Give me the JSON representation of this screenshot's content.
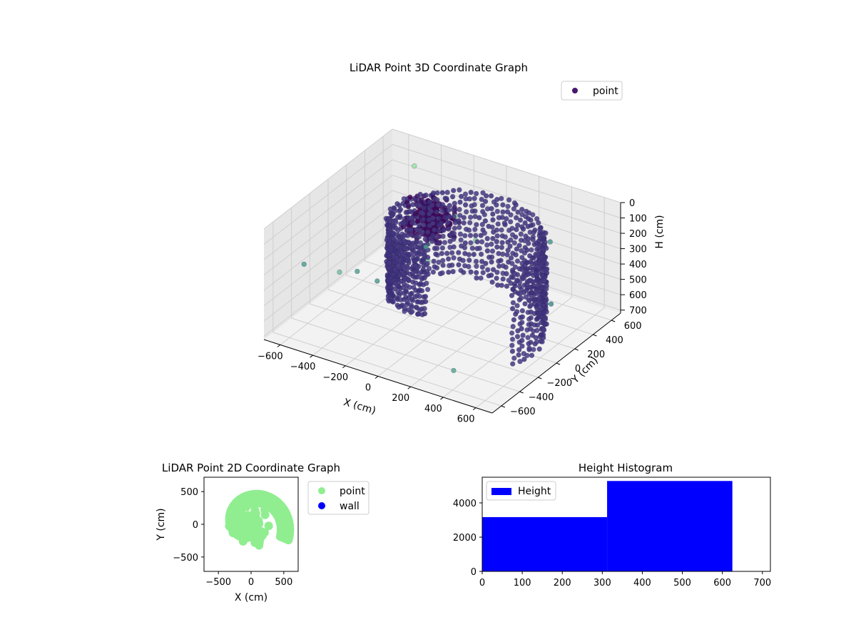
{
  "chart_data": [
    {
      "type": "scatter",
      "projection": "3d",
      "title": "LiDAR Point 3D Coordinate Graph",
      "xlabel": "X (cm)",
      "ylabel": "Y (cm)",
      "zlabel": "H (cm)",
      "xlim": [
        -700,
        700
      ],
      "ylim": [
        -700,
        700
      ],
      "zlim": [
        0,
        720
      ],
      "z_inverted": true,
      "xticks": [
        -600,
        -400,
        -200,
        0,
        200,
        400,
        600
      ],
      "yticks": [
        -600,
        -400,
        -200,
        0,
        200,
        400,
        600
      ],
      "zticks": [
        0,
        100,
        200,
        300,
        400,
        500,
        600,
        700
      ],
      "colormap": "viridis",
      "legend": {
        "placement": "top-right",
        "entries": [
          {
            "label": "point",
            "color": "#46186e"
          }
        ]
      },
      "series": [
        {
          "name": "point",
          "description_shape": "spiral wall",
          "wall_radius_cm": [
            620,
            180
          ],
          "points_per_turn": 78
        }
      ],
      "grid": true
    },
    {
      "type": "scatter",
      "title": "LiDAR Point 2D Coordinate Graph",
      "xlabel": "X (cm)",
      "ylabel": "Y (cm)",
      "xlim": [
        -720,
        720
      ],
      "ylim": [
        -720,
        720
      ],
      "xticks": [
        -500,
        0,
        500
      ],
      "yticks": [
        -500,
        0,
        500
      ],
      "legend": {
        "placement": "outside-right",
        "entries": [
          {
            "label": "point",
            "color": "#90ee90"
          },
          {
            "label": "wall",
            "color": "#0000ff"
          }
        ]
      }
    },
    {
      "type": "bar",
      "subtype": "histogram",
      "title": "Height Histogram",
      "xlim": [
        0,
        720
      ],
      "ylim": [
        0,
        5500
      ],
      "xticks": [
        0,
        100,
        200,
        300,
        400,
        500,
        600,
        700
      ],
      "yticks": [
        0,
        2000,
        4000
      ],
      "bins": [
        {
          "start": 0,
          "end": 312,
          "count": 3170
        },
        {
          "start": 312,
          "end": 625,
          "count": 5280
        }
      ],
      "color": "#0000ff",
      "legend": {
        "placement": "top-left",
        "entries": [
          {
            "label": "Height",
            "color": "#0000ff"
          }
        ]
      }
    }
  ]
}
